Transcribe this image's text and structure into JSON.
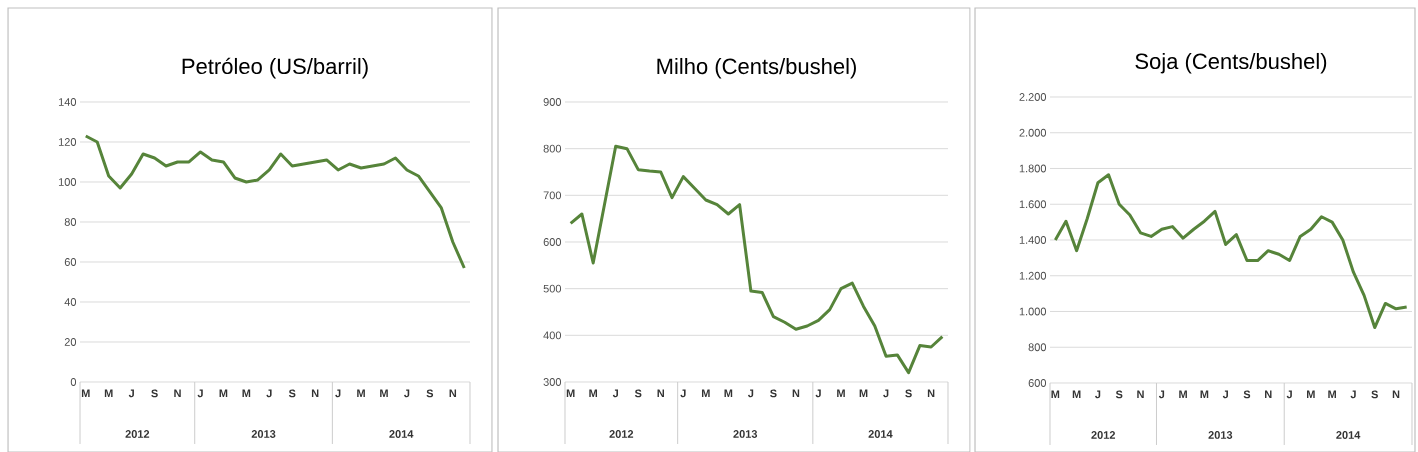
{
  "chart_data": [
    {
      "type": "line",
      "title": "Petróleo  (US/barril)",
      "categories": [
        "M",
        null,
        "M",
        null,
        "J",
        null,
        "S",
        null,
        "N",
        null,
        "J",
        null,
        "M",
        null,
        "M",
        null,
        "J",
        null,
        "S",
        null,
        "N",
        null,
        "J",
        null,
        "M",
        null,
        "M",
        null,
        "J",
        null,
        "S",
        null,
        "N",
        null
      ],
      "series": [
        {
          "color": "#56843a",
          "values": [
            123,
            120,
            103,
            97,
            104,
            114,
            112,
            108,
            110,
            110,
            115,
            111,
            110,
            102,
            100,
            101,
            106,
            114,
            108,
            109,
            110,
            111,
            106,
            109,
            107,
            108,
            109,
            112,
            106,
            103,
            95,
            87,
            70,
            57
          ]
        }
      ],
      "ylim": [
        0,
        140
      ],
      "yticks": [
        0,
        20,
        40,
        60,
        80,
        100,
        120,
        140
      ],
      "grid": "y",
      "line_style": "solid",
      "annotations": [
        "2012",
        "2013",
        "2014"
      ]
    },
    {
      "type": "line",
      "title": "Milho  (Cents/bushel)",
      "categories": [
        "M",
        null,
        "M",
        null,
        "J",
        null,
        "S",
        null,
        "N",
        null,
        "J",
        null,
        "M",
        null,
        "M",
        null,
        "J",
        null,
        "S",
        null,
        "N",
        null,
        "J",
        null,
        "M",
        null,
        "M",
        null,
        "J",
        null,
        "S",
        null,
        "N",
        null
      ],
      "series": [
        {
          "color": "#56843a",
          "values": [
            640,
            660,
            555,
            680,
            805,
            800,
            755,
            752,
            750,
            695,
            740,
            715,
            690,
            680,
            660,
            680,
            495,
            492,
            440,
            428,
            413,
            420,
            432,
            455,
            500,
            512,
            462,
            420,
            355,
            358,
            320,
            378,
            375,
            397
          ]
        }
      ],
      "ylim": [
        300,
        900
      ],
      "yticks": [
        300,
        400,
        500,
        600,
        700,
        800,
        900
      ],
      "grid": "y",
      "line_style": "solid",
      "annotations": [
        "2012",
        "2013",
        "2014"
      ]
    },
    {
      "type": "line",
      "title": "Soja  (Cents/bushel)",
      "categories": [
        "M",
        null,
        "M",
        null,
        "J",
        null,
        "S",
        null,
        "N",
        null,
        "J",
        null,
        "M",
        null,
        "M",
        null,
        "J",
        null,
        "S",
        null,
        "N",
        null,
        "J",
        null,
        "M",
        null,
        "M",
        null,
        "J",
        null,
        "S",
        null,
        "N",
        null
      ],
      "series": [
        {
          "color": "#56843a",
          "values": [
            1400,
            1505,
            1340,
            1520,
            1720,
            1765,
            1600,
            1540,
            1440,
            1420,
            1460,
            1475,
            1410,
            1460,
            1505,
            1560,
            1375,
            1430,
            1285,
            1285,
            1340,
            1320,
            1285,
            1420,
            1460,
            1530,
            1500,
            1400,
            1220,
            1090,
            910,
            1045,
            1015,
            1025
          ]
        }
      ],
      "ylim": [
        600,
        2200
      ],
      "yticks": [
        600,
        800,
        {
          "value": 1000,
          "label": "1.000"
        },
        {
          "value": 1200,
          "label": "1.200"
        },
        {
          "value": 1400,
          "label": "1.400"
        },
        {
          "value": 1600,
          "label": "1.600"
        },
        {
          "value": 1800,
          "label": "1.800"
        },
        {
          "value": 2000,
          "label": "2.000"
        },
        {
          "value": 2200,
          "label": "2.200"
        }
      ],
      "grid": "y",
      "line_style": "solid",
      "annotations": [
        "2012",
        "2013",
        "2014"
      ]
    }
  ]
}
